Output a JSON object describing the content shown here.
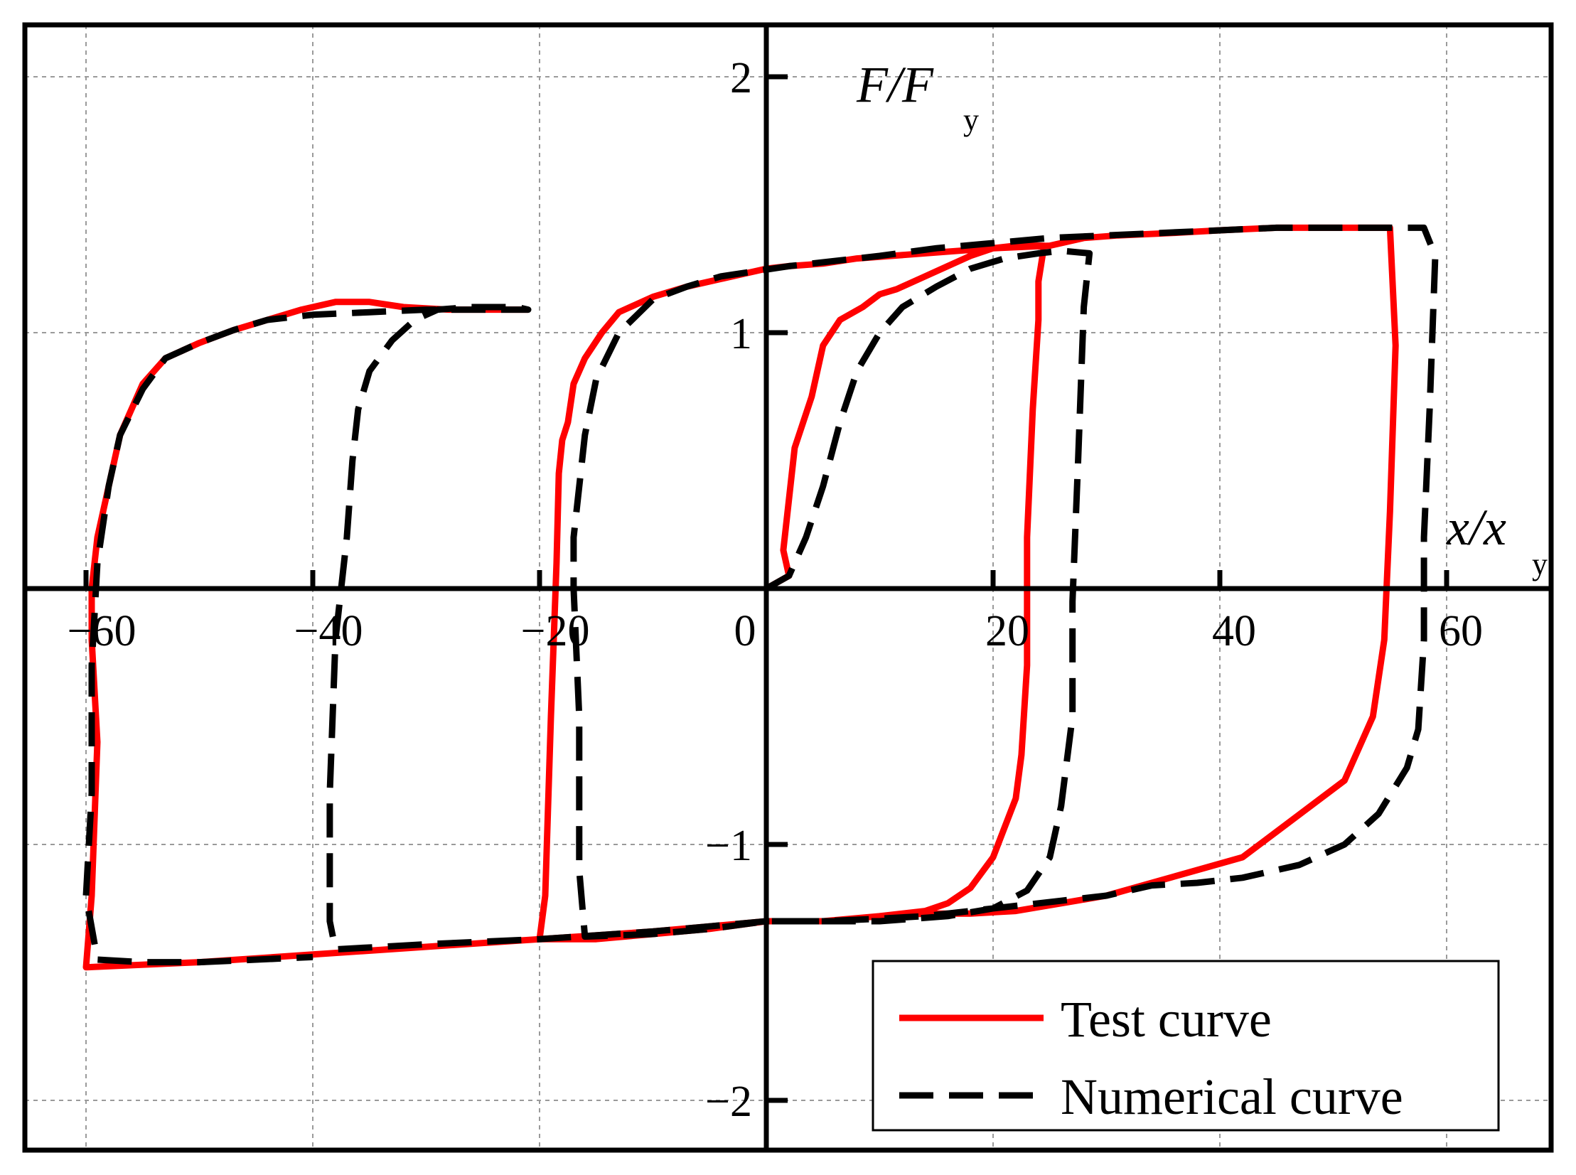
{
  "chart_data": {
    "type": "line",
    "title": "",
    "xlabel": {
      "main": "x/x",
      "sub": "y"
    },
    "ylabel": {
      "main": "F/F",
      "sub": "y"
    },
    "xlim": [
      -65,
      70
    ],
    "ylim": [
      -2.2,
      2.2
    ],
    "xticks": [
      -60,
      -40,
      -20,
      0,
      20,
      40,
      60
    ],
    "yticks": [
      -2,
      -1,
      1,
      2
    ],
    "xtick_labels": [
      "−60",
      "−40",
      "−20",
      "0",
      "20",
      "40",
      "60"
    ],
    "ytick_labels": [
      "−2",
      "−1",
      "1",
      "2"
    ],
    "grid": true,
    "legend_position": "bottom-right",
    "series": [
      {
        "name": "Test curve",
        "color": "#ff0000",
        "style": "solid",
        "points": [
          [
            0,
            0
          ],
          [
            2,
            0.05
          ],
          [
            1.5,
            0.15
          ],
          [
            2,
            0.35
          ],
          [
            2.5,
            0.55
          ],
          [
            4,
            0.75
          ],
          [
            5,
            0.95
          ],
          [
            6.5,
            1.05
          ],
          [
            8.5,
            1.1
          ],
          [
            10,
            1.15
          ],
          [
            11.5,
            1.17
          ],
          [
            14,
            1.22
          ],
          [
            16,
            1.26
          ],
          [
            18,
            1.3
          ],
          [
            20,
            1.33
          ],
          [
            22,
            1.34
          ],
          [
            24.5,
            1.34
          ],
          [
            24,
            1.2
          ],
          [
            24,
            1.05
          ],
          [
            23.5,
            0.7
          ],
          [
            23,
            0.2
          ],
          [
            23,
            -0.3
          ],
          [
            22.5,
            -0.65
          ],
          [
            22,
            -0.82
          ],
          [
            20,
            -1.05
          ],
          [
            18,
            -1.17
          ],
          [
            16,
            -1.23
          ],
          [
            14,
            -1.26
          ],
          [
            10,
            -1.28
          ],
          [
            5,
            -1.3
          ],
          [
            0,
            -1.3
          ],
          [
            -5,
            -1.33
          ],
          [
            -10,
            -1.35
          ],
          [
            -15,
            -1.37
          ],
          [
            -20,
            -1.37
          ],
          [
            -19.5,
            -1.2
          ],
          [
            -19,
            -0.5
          ],
          [
            -18.5,
            0.1
          ],
          [
            -18.3,
            0.45
          ],
          [
            -18,
            0.58
          ],
          [
            -17.5,
            0.65
          ],
          [
            -17,
            0.8
          ],
          [
            -16,
            0.9
          ],
          [
            -14.5,
            1.0
          ],
          [
            -13,
            1.08
          ],
          [
            -10,
            1.14
          ],
          [
            -7,
            1.18
          ],
          [
            -4,
            1.21
          ],
          [
            0,
            1.25
          ],
          [
            2,
            1.26
          ],
          [
            5,
            1.27
          ],
          [
            8,
            1.29
          ],
          [
            11,
            1.3
          ],
          [
            14,
            1.31
          ],
          [
            17,
            1.32
          ],
          [
            20,
            1.33
          ],
          [
            25,
            1.34
          ],
          [
            28,
            1.37
          ],
          [
            31,
            1.38
          ],
          [
            36,
            1.39
          ],
          [
            40,
            1.4
          ],
          [
            45,
            1.41
          ],
          [
            50,
            1.41
          ],
          [
            55,
            1.41
          ],
          [
            55.5,
            0.95
          ],
          [
            55,
            0.3
          ],
          [
            54.5,
            -0.2
          ],
          [
            53.5,
            -0.5
          ],
          [
            51,
            -0.75
          ],
          [
            48,
            -0.85
          ],
          [
            45,
            -0.95
          ],
          [
            42,
            -1.05
          ],
          [
            38,
            -1.1
          ],
          [
            34,
            -1.15
          ],
          [
            30,
            -1.2
          ],
          [
            26,
            -1.23
          ],
          [
            22,
            -1.26
          ],
          [
            18,
            -1.27
          ],
          [
            14,
            -1.27
          ],
          [
            10,
            -1.28
          ],
          [
            5,
            -1.3
          ],
          [
            0,
            -1.3
          ],
          [
            -5,
            -1.32
          ],
          [
            -10,
            -1.34
          ],
          [
            -20,
            -1.37
          ],
          [
            -30,
            -1.4
          ],
          [
            -40,
            -1.43
          ],
          [
            -50,
            -1.46
          ],
          [
            -60,
            -1.48
          ],
          [
            -59.5,
            -1.2
          ],
          [
            -59,
            -0.6
          ],
          [
            -59.5,
            -0.2
          ],
          [
            -59.5,
            0
          ],
          [
            -59,
            0.2
          ],
          [
            -58,
            0.4
          ],
          [
            -57,
            0.6
          ],
          [
            -55,
            0.8
          ],
          [
            -53,
            0.9
          ],
          [
            -50,
            0.96
          ],
          [
            -47,
            1.01
          ],
          [
            -44,
            1.05
          ],
          [
            -41,
            1.09
          ],
          [
            -38,
            1.12
          ],
          [
            -35,
            1.12
          ],
          [
            -32,
            1.1
          ],
          [
            -28,
            1.09
          ],
          [
            -24,
            1.09
          ],
          [
            -21,
            1.09
          ]
        ]
      },
      {
        "name": "Numerical curve",
        "color": "#000000",
        "style": "dashed",
        "points": [
          [
            0,
            0
          ],
          [
            2,
            0.05
          ],
          [
            3.5,
            0.2
          ],
          [
            5,
            0.4
          ],
          [
            6.5,
            0.65
          ],
          [
            8,
            0.85
          ],
          [
            10,
            1.0
          ],
          [
            12,
            1.1
          ],
          [
            15,
            1.18
          ],
          [
            18,
            1.25
          ],
          [
            21,
            1.29
          ],
          [
            24,
            1.31
          ],
          [
            26,
            1.32
          ],
          [
            28.5,
            1.31
          ],
          [
            28,
            1.1
          ],
          [
            27.5,
            0.5
          ],
          [
            27,
            -0.05
          ],
          [
            27,
            -0.5
          ],
          [
            26,
            -0.85
          ],
          [
            25,
            -1.05
          ],
          [
            23,
            -1.18
          ],
          [
            20,
            -1.25
          ],
          [
            16,
            -1.28
          ],
          [
            10,
            -1.3
          ],
          [
            5,
            -1.3
          ],
          [
            0,
            -1.3
          ],
          [
            -5,
            -1.33
          ],
          [
            -10,
            -1.35
          ],
          [
            -16,
            -1.36
          ],
          [
            -16.5,
            -1.1
          ],
          [
            -16.5,
            -0.5
          ],
          [
            -17,
            0
          ],
          [
            -17,
            0.2
          ],
          [
            -16,
            0.6
          ],
          [
            -15,
            0.82
          ],
          [
            -13,
            1.0
          ],
          [
            -10,
            1.13
          ],
          [
            -7,
            1.18
          ],
          [
            -4,
            1.22
          ],
          [
            -1,
            1.24
          ],
          [
            2,
            1.26
          ],
          [
            6,
            1.28
          ],
          [
            10,
            1.3
          ],
          [
            15,
            1.33
          ],
          [
            20,
            1.35
          ],
          [
            25,
            1.37
          ],
          [
            30,
            1.38
          ],
          [
            35,
            1.39
          ],
          [
            40,
            1.4
          ],
          [
            45,
            1.41
          ],
          [
            50,
            1.41
          ],
          [
            55,
            1.41
          ],
          [
            58,
            1.41
          ],
          [
            59,
            1.3
          ],
          [
            58.5,
            0.7
          ],
          [
            58,
            0.2
          ],
          [
            58,
            -0.2
          ],
          [
            57.5,
            -0.55
          ],
          [
            56.5,
            -0.7
          ],
          [
            54,
            -0.88
          ],
          [
            51,
            -1.0
          ],
          [
            47,
            -1.08
          ],
          [
            42,
            -1.13
          ],
          [
            38,
            -1.15
          ],
          [
            34,
            -1.16
          ],
          [
            30,
            -1.2
          ],
          [
            26,
            -1.22
          ],
          [
            22,
            -1.24
          ],
          [
            18,
            -1.26
          ],
          [
            14,
            -1.28
          ],
          [
            10,
            -1.29
          ],
          [
            5,
            -1.3
          ],
          [
            0,
            -1.3
          ],
          [
            -5,
            -1.32
          ],
          [
            -10,
            -1.34
          ],
          [
            -20,
            -1.37
          ],
          [
            -30,
            -1.39
          ],
          [
            -38,
            -1.41
          ],
          [
            -38.5,
            -1.3
          ],
          [
            -38.5,
            -0.8
          ],
          [
            -38,
            -0.2
          ],
          [
            -37,
            0.2
          ],
          [
            -36.5,
            0.5
          ],
          [
            -36,
            0.7
          ],
          [
            -35,
            0.85
          ],
          [
            -33,
            0.97
          ],
          [
            -31,
            1.05
          ],
          [
            -29,
            1.09
          ],
          [
            -26,
            1.1
          ],
          [
            -22,
            1.1
          ],
          [
            -21,
            1.09
          ],
          [
            -25,
            1.09
          ],
          [
            -30,
            1.09
          ],
          [
            -35,
            1.08
          ],
          [
            -40,
            1.07
          ],
          [
            -44,
            1.05
          ],
          [
            -47,
            1.01
          ],
          [
            -50,
            0.96
          ],
          [
            -53,
            0.9
          ],
          [
            -55,
            0.78
          ],
          [
            -57,
            0.6
          ],
          [
            -58,
            0.4
          ],
          [
            -59,
            0.1
          ],
          [
            -59.5,
            -0.3
          ],
          [
            -59.5,
            -0.8
          ],
          [
            -60,
            -1.2
          ],
          [
            -59,
            -1.45
          ],
          [
            -55,
            -1.46
          ],
          [
            -50,
            -1.46
          ],
          [
            -45,
            -1.45
          ],
          [
            -40,
            -1.44
          ]
        ]
      }
    ]
  }
}
